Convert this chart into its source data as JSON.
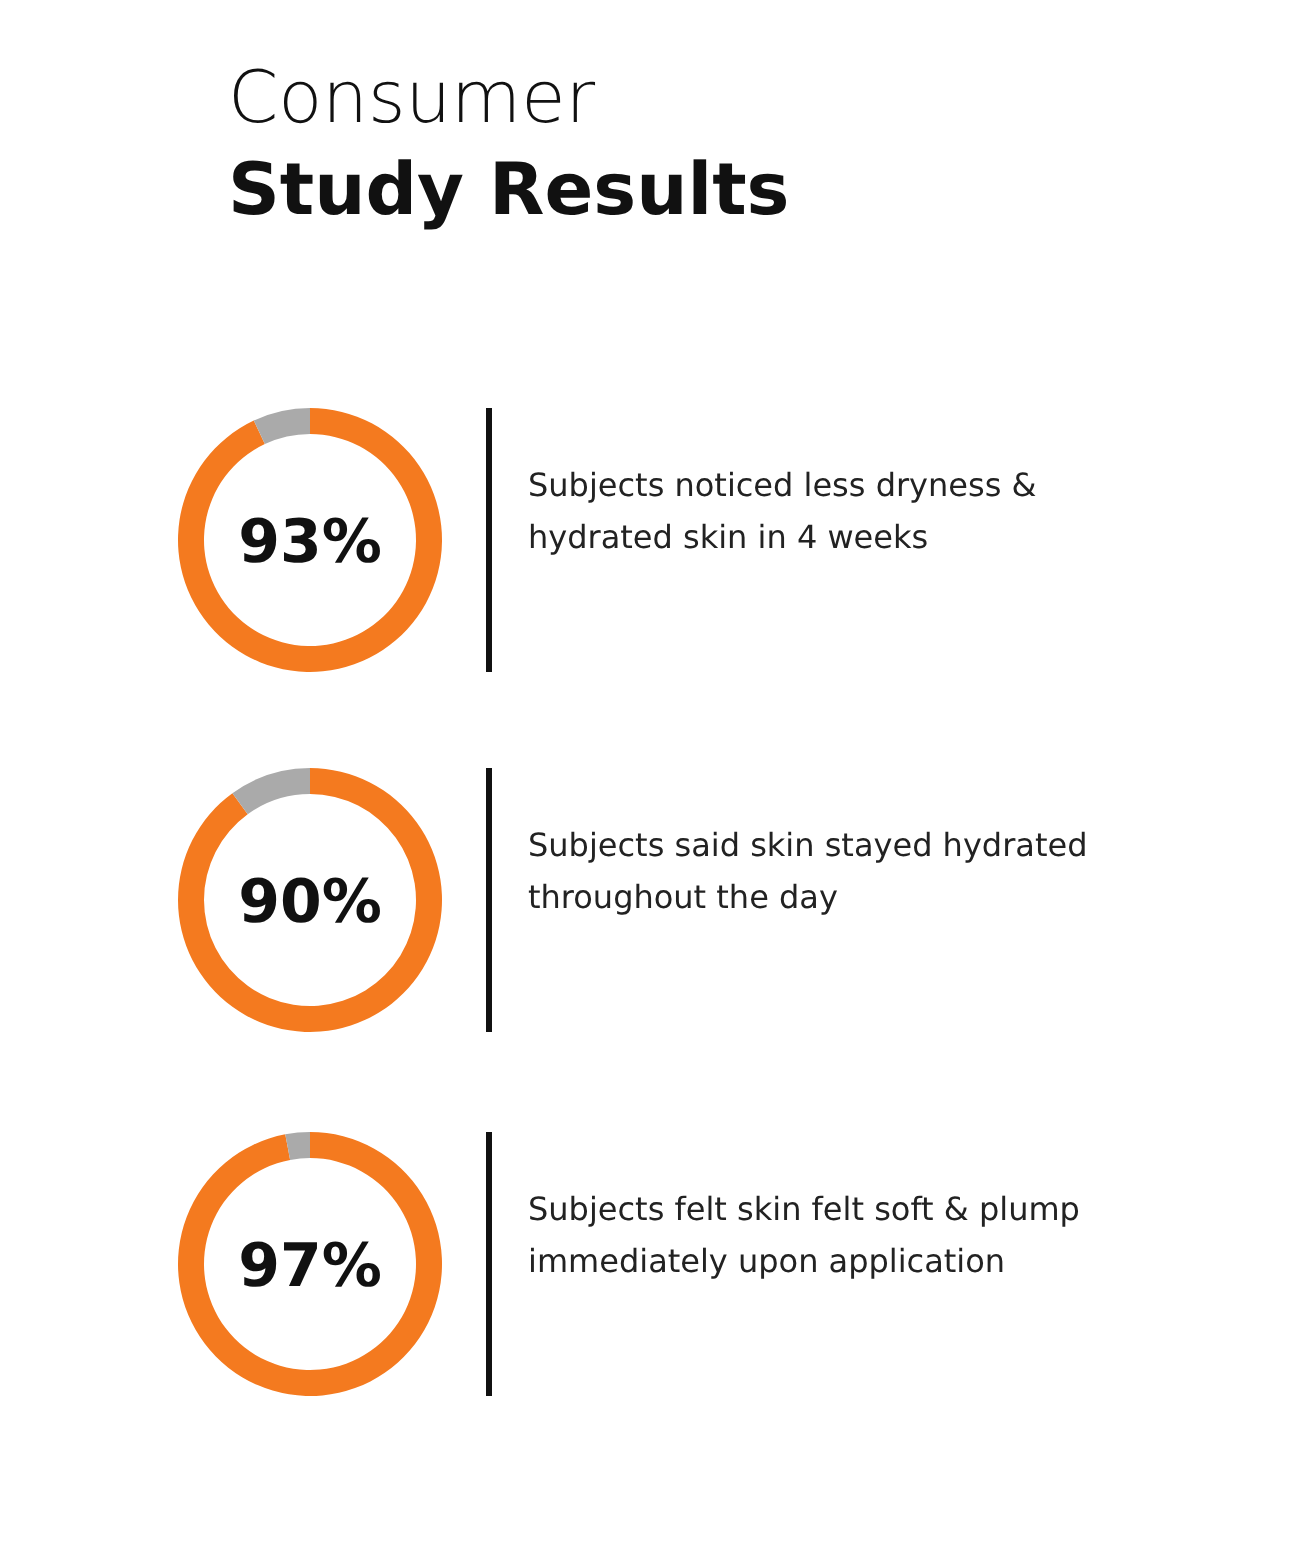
{
  "chart_data": [
    {
      "type": "donut",
      "title": "Consumer",
      "subtitle": "Study Results",
      "categories": [
        null,
        null
      ],
      "values": [
        93,
        7
      ],
      "colors": [
        "#f47a1f",
        "#aaaaaa"
      ],
      "value_labels": [
        "93%",
        null
      ],
      "annotations": [
        "Subjects noticed less dryness & hydrated skin in 4 weeks"
      ]
    },
    {
      "type": "donut",
      "categories": [
        null,
        null
      ],
      "values": [
        90,
        10
      ],
      "colors": [
        "#f47a1f",
        "#aaaaaa"
      ],
      "value_labels": [
        "90%",
        null
      ],
      "annotations": [
        "Subjects said skin stayed hydrated throughout the day"
      ]
    },
    {
      "type": "donut",
      "categories": [
        null,
        null
      ],
      "values": [
        97,
        3
      ],
      "colors": [
        "#f47a1f",
        "#aaaaaa"
      ],
      "value_labels": [
        "97%",
        null
      ],
      "annotations": [
        "Subjects felt skin felt soft & plump immediately upon application"
      ]
    }
  ]
}
